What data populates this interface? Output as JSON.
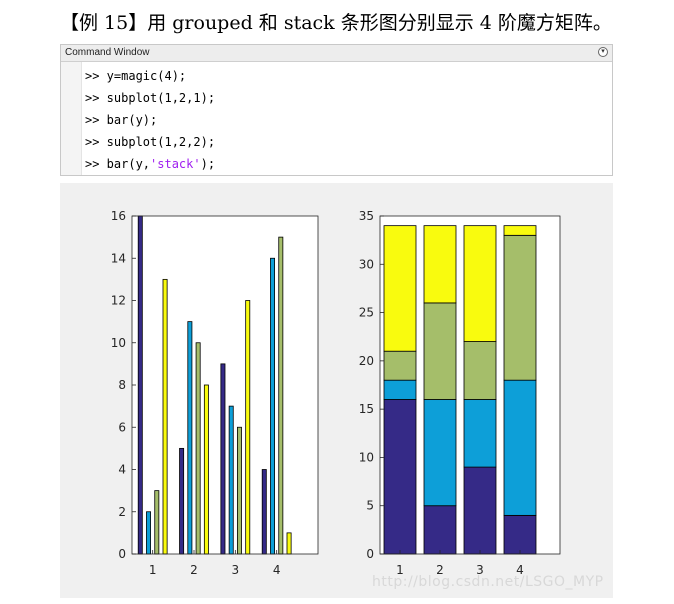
{
  "header": {
    "title": "【例 15】用 grouped 和 stack 条形图分别显示 4 阶魔方矩阵。"
  },
  "command_window": {
    "title": "Command Window",
    "menu_icon": "chevron-down-icon",
    "lines": [
      {
        "prompt": ">>",
        "code": " y=magic(4);",
        "string": "",
        "tail": ""
      },
      {
        "prompt": ">>",
        "code": " subplot(1,2,1);",
        "string": "",
        "tail": ""
      },
      {
        "prompt": ">>",
        "code": " bar(y);",
        "string": "",
        "tail": ""
      },
      {
        "prompt": ">>",
        "code": " subplot(1,2,2);",
        "string": "",
        "tail": ""
      },
      {
        "prompt": ">>",
        "code": " bar(y,",
        "string": "'stack'",
        "tail": ");"
      }
    ]
  },
  "colors": {
    "series": [
      "#352a87",
      "#0d9fd8",
      "#a5be6a",
      "#f9fb0e"
    ],
    "figure_bg": "#f0f0f0",
    "axes_bg": "#ffffff"
  },
  "chart_data": [
    {
      "type": "bar",
      "mode": "grouped",
      "categories": [
        "1",
        "2",
        "3",
        "4"
      ],
      "series": [
        {
          "values": [
            16,
            5,
            9,
            4
          ]
        },
        {
          "values": [
            2,
            11,
            7,
            14
          ]
        },
        {
          "values": [
            3,
            10,
            6,
            15
          ]
        },
        {
          "values": [
            13,
            8,
            12,
            1
          ]
        }
      ],
      "ylim": [
        0,
        16
      ],
      "yticks": [
        "0",
        "2",
        "4",
        "6",
        "8",
        "10",
        "12",
        "14",
        "16"
      ],
      "xlim": [
        0.5,
        5
      ]
    },
    {
      "type": "bar",
      "mode": "stacked",
      "categories": [
        "1",
        "2",
        "3",
        "4"
      ],
      "series": [
        {
          "values": [
            16,
            5,
            9,
            4
          ]
        },
        {
          "values": [
            2,
            11,
            7,
            14
          ]
        },
        {
          "values": [
            3,
            10,
            6,
            15
          ]
        },
        {
          "values": [
            13,
            8,
            12,
            1
          ]
        }
      ],
      "ylim": [
        0,
        35
      ],
      "yticks": [
        "0",
        "5",
        "10",
        "15",
        "20",
        "25",
        "30",
        "35"
      ],
      "xlim": [
        0.5,
        5
      ]
    }
  ],
  "watermark": "http://blog.csdn.net/LSGO_MYP"
}
